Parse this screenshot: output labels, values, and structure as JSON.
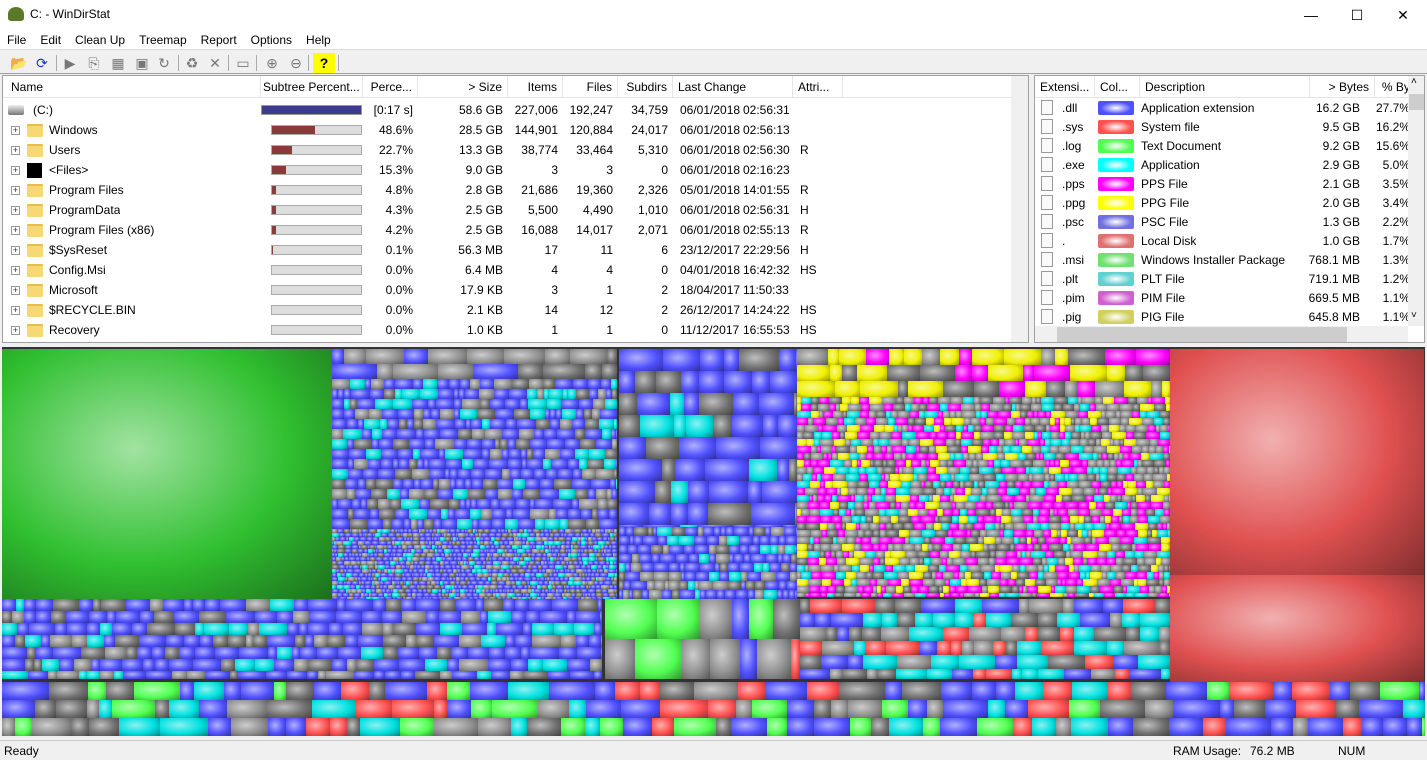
{
  "window": {
    "title": "C: - WinDirStat",
    "min": "—",
    "max": "☐",
    "close": "✕"
  },
  "menu": [
    "File",
    "Edit",
    "Clean Up",
    "Treemap",
    "Report",
    "Options",
    "Help"
  ],
  "toolbar": [
    {
      "icon": "open-icon",
      "g": "📂"
    },
    {
      "icon": "refresh-icon",
      "g": "⟳"
    },
    {
      "icon": "play-icon",
      "g": "▶"
    },
    {
      "icon": "copy-path-icon",
      "g": "⎘"
    },
    {
      "icon": "explorer-icon",
      "g": "▦"
    },
    {
      "icon": "command-prompt-icon",
      "g": "▣"
    },
    {
      "icon": "refresh-selected-icon",
      "g": "↻"
    },
    {
      "icon": "recycle-icon",
      "g": "♻"
    },
    {
      "icon": "delete-icon",
      "g": "✕"
    },
    {
      "icon": "new-folder-icon",
      "g": "▭"
    },
    {
      "icon": "zoom-in-icon",
      "g": "⊕"
    },
    {
      "icon": "zoom-out-icon",
      "g": "⊖"
    },
    {
      "icon": "help-icon",
      "g": "?"
    }
  ],
  "tree": {
    "columns": [
      "Name",
      "Subtree Percent...",
      "Perce...",
      "> Size",
      "Items",
      "Files",
      "Subdirs",
      "Last Change",
      "Attri..."
    ],
    "rows": [
      {
        "name": "(C:)",
        "root": true,
        "subtree": 100,
        "perc": "[0:17 s]",
        "size": "58.6 GB",
        "items": "227,006",
        "files": "192,247",
        "subdirs": "34,759",
        "date": "06/01/2018",
        "time": "02:56:31",
        "attr": ""
      },
      {
        "name": "Windows",
        "subtree": 48.6,
        "perc": "48.6%",
        "size": "28.5 GB",
        "items": "144,901",
        "files": "120,884",
        "subdirs": "24,017",
        "date": "06/01/2018",
        "time": "02:56:13",
        "attr": ""
      },
      {
        "name": "Users",
        "subtree": 22.7,
        "perc": "22.7%",
        "size": "13.3 GB",
        "items": "38,774",
        "files": "33,464",
        "subdirs": "5,310",
        "date": "06/01/2018",
        "time": "02:56:30",
        "attr": "R"
      },
      {
        "name": "<Files>",
        "files_node": true,
        "subtree": 15.3,
        "perc": "15.3%",
        "size": "9.0 GB",
        "items": "3",
        "files": "3",
        "subdirs": "0",
        "date": "06/01/2018",
        "time": "02:16:23",
        "attr": ""
      },
      {
        "name": "Program Files",
        "subtree": 4.8,
        "perc": "4.8%",
        "size": "2.8 GB",
        "items": "21,686",
        "files": "19,360",
        "subdirs": "2,326",
        "date": "05/01/2018",
        "time": "14:01:55",
        "attr": "R"
      },
      {
        "name": "ProgramData",
        "subtree": 4.3,
        "perc": "4.3%",
        "size": "2.5 GB",
        "items": "5,500",
        "files": "4,490",
        "subdirs": "1,010",
        "date": "06/01/2018",
        "time": "02:56:31",
        "attr": "H"
      },
      {
        "name": "Program Files (x86)",
        "subtree": 4.2,
        "perc": "4.2%",
        "size": "2.5 GB",
        "items": "16,088",
        "files": "14,017",
        "subdirs": "2,071",
        "date": "06/01/2018",
        "time": "02:55:13",
        "attr": "R"
      },
      {
        "name": "$SysReset",
        "subtree": 0.1,
        "perc": "0.1%",
        "size": "56.3 MB",
        "items": "17",
        "files": "11",
        "subdirs": "6",
        "date": "23/12/2017",
        "time": "22:29:56",
        "attr": "H"
      },
      {
        "name": "Config.Msi",
        "subtree": 0,
        "perc": "0.0%",
        "size": "6.4 MB",
        "items": "4",
        "files": "4",
        "subdirs": "0",
        "date": "04/01/2018",
        "time": "16:42:32",
        "attr": "HS"
      },
      {
        "name": "Microsoft",
        "subtree": 0,
        "perc": "0.0%",
        "size": "17.9 KB",
        "items": "3",
        "files": "1",
        "subdirs": "2",
        "date": "18/04/2017",
        "time": "11:50:33",
        "attr": ""
      },
      {
        "name": "$RECYCLE.BIN",
        "subtree": 0,
        "perc": "0.0%",
        "size": "2.1 KB",
        "items": "14",
        "files": "12",
        "subdirs": "2",
        "date": "26/12/2017",
        "time": "14:24:22",
        "attr": "HS"
      },
      {
        "name": "Recovery",
        "subtree": 0,
        "perc": "0.0%",
        "size": "1.0 KB",
        "items": "1",
        "files": "1",
        "subdirs": "0",
        "date": "11/12/2017",
        "time": "16:55:53",
        "attr": "HS"
      }
    ]
  },
  "ext": {
    "columns": [
      "Extensi...",
      "Col...",
      "Description",
      "> Bytes",
      "% By..."
    ],
    "rows": [
      {
        "ext": ".dll",
        "color": "#5050ff",
        "desc": "Application extension",
        "bytes": "16.2 GB",
        "pct": "27.7%",
        "icon": "dll-file-icon"
      },
      {
        "ext": ".sys",
        "color": "#ff5050",
        "desc": "System file",
        "bytes": "9.5 GB",
        "pct": "16.2%",
        "icon": "sys-file-icon"
      },
      {
        "ext": ".log",
        "color": "#50ff50",
        "desc": "Text Document",
        "bytes": "9.2 GB",
        "pct": "15.6%",
        "icon": "text-file-icon"
      },
      {
        "ext": ".exe",
        "color": "#00ffff",
        "desc": "Application",
        "bytes": "2.9 GB",
        "pct": "5.0%",
        "icon": "exe-file-icon"
      },
      {
        "ext": ".pps",
        "color": "#ff00ff",
        "desc": "PPS File",
        "bytes": "2.1 GB",
        "pct": "3.5%",
        "icon": "file-icon"
      },
      {
        "ext": ".ppg",
        "color": "#ffff00",
        "desc": "PPG File",
        "bytes": "2.0 GB",
        "pct": "3.4%",
        "icon": "file-icon"
      },
      {
        "ext": ".psc",
        "color": "#7070e0",
        "desc": "PSC File",
        "bytes": "1.3 GB",
        "pct": "2.2%",
        "icon": "file-icon"
      },
      {
        "ext": ".",
        "color": "#e07070",
        "desc": "Local Disk",
        "bytes": "1.0 GB",
        "pct": "1.7%",
        "icon": "drive-icon"
      },
      {
        "ext": ".msi",
        "color": "#70e070",
        "desc": "Windows Installer Package",
        "bytes": "768.1 MB",
        "pct": "1.3%",
        "icon": "installer-icon"
      },
      {
        "ext": ".plt",
        "color": "#60d0d0",
        "desc": "PLT File",
        "bytes": "719.1 MB",
        "pct": "1.2%",
        "icon": "file-icon"
      },
      {
        "ext": ".pim",
        "color": "#d060d0",
        "desc": "PIM File",
        "bytes": "669.5 MB",
        "pct": "1.1%",
        "icon": "file-icon"
      },
      {
        "ext": ".pig",
        "color": "#d0d060",
        "desc": "PIG File",
        "bytes": "645.8 MB",
        "pct": "1.1%",
        "icon": "file-icon"
      }
    ]
  },
  "status": {
    "text": "Ready",
    "ram_label": "RAM Usage:",
    "ram_value": "76.2 MB",
    "num": "NUM"
  }
}
